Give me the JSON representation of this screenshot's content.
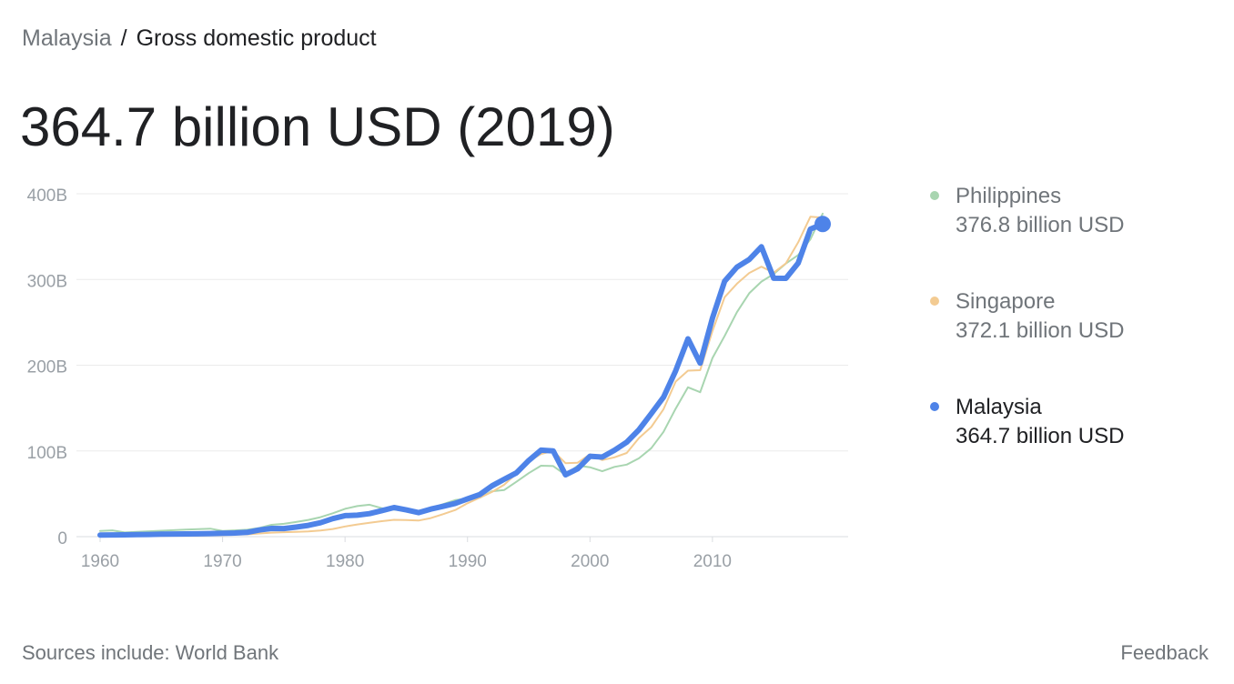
{
  "breadcrumb": {
    "country": "Malaysia",
    "separator": "/",
    "indicator": "Gross domestic product"
  },
  "headline": "364.7 billion USD (2019)",
  "legend": [
    {
      "name": "Philippines",
      "value": "376.8 billion USD",
      "color": "#a8d5b0",
      "active": false
    },
    {
      "name": "Singapore",
      "value": "372.1 billion USD",
      "color": "#f3cb92",
      "active": false
    },
    {
      "name": "Malaysia",
      "value": "364.7 billion USD",
      "color": "#4e83e8",
      "active": true
    }
  ],
  "footer": {
    "source": "Sources include: World Bank",
    "feedback": "Feedback"
  },
  "chart_data": {
    "type": "line",
    "x": [
      1960,
      1961,
      1962,
      1963,
      1964,
      1965,
      1966,
      1967,
      1968,
      1969,
      1970,
      1971,
      1972,
      1973,
      1974,
      1975,
      1976,
      1977,
      1978,
      1979,
      1980,
      1981,
      1982,
      1983,
      1984,
      1985,
      1986,
      1987,
      1988,
      1989,
      1990,
      1991,
      1992,
      1993,
      1994,
      1995,
      1996,
      1997,
      1998,
      1999,
      2000,
      2001,
      2002,
      2003,
      2004,
      2005,
      2006,
      2007,
      2008,
      2009,
      2010,
      2011,
      2012,
      2013,
      2014,
      2015,
      2016,
      2017,
      2018,
      2019
    ],
    "xticks": [
      "1960",
      "1970",
      "1980",
      "1990",
      "2000",
      "2010"
    ],
    "yticks": [
      "0",
      "100B",
      "200B",
      "300B",
      "400B"
    ],
    "ylim": [
      0,
      400
    ],
    "grid": true,
    "legend_position": "right",
    "series": [
      {
        "name": "Philippines",
        "color": "#a8d5b0",
        "width": 2,
        "values": [
          6.7,
          7.3,
          4.9,
          5.5,
          6.3,
          6.9,
          7.5,
          8.2,
          8.7,
          9.3,
          6.7,
          7.3,
          8.1,
          10.1,
          13.8,
          15.0,
          17.1,
          19.5,
          22.7,
          27.3,
          32.5,
          35.6,
          37.2,
          33.2,
          31.4,
          30.7,
          29.9,
          33.2,
          37.9,
          42.6,
          44.3,
          45.4,
          52.9,
          54.4,
          64.1,
          74.1,
          82.8,
          82.3,
          72.2,
          82.9,
          81.0,
          76.3,
          81.4,
          84.0,
          91.4,
          103.1,
          122.2,
          149.4,
          174.2,
          168.5,
          208.4,
          234.2,
          261.9,
          283.9,
          297.5,
          306.4,
          318.6,
          328.5,
          346.8,
          376.8
        ]
      },
      {
        "name": "Singapore",
        "color": "#f3cb92",
        "width": 2,
        "values": [
          0.7,
          0.8,
          0.9,
          0.9,
          0.9,
          1.0,
          1.1,
          1.2,
          1.4,
          1.6,
          1.9,
          2.3,
          2.7,
          3.7,
          4.7,
          5.2,
          5.6,
          6.0,
          7.2,
          8.9,
          11.9,
          14.2,
          16.1,
          18.0,
          19.6,
          19.4,
          18.8,
          21.6,
          26.2,
          31.1,
          38.9,
          45.5,
          52.1,
          60.6,
          73.7,
          87.9,
          96.3,
          100.1,
          85.7,
          86.3,
          96.1,
          89.3,
          92.5,
          97.6,
          115.0,
          127.8,
          148.6,
          180.9,
          193.6,
          194.2,
          239.8,
          279.4,
          295.1,
          307.6,
          314.9,
          307.9,
          318.8,
          343.3,
          373.2,
          372.1
        ]
      },
      {
        "name": "Malaysia",
        "color": "#4e83e8",
        "width": 6,
        "values": [
          1.9,
          2.0,
          2.1,
          2.3,
          2.5,
          2.9,
          3.1,
          3.2,
          3.3,
          3.6,
          3.9,
          4.2,
          5.0,
          7.7,
          9.5,
          9.4,
          11.1,
          13.2,
          16.2,
          21.0,
          24.5,
          25.0,
          26.8,
          30.3,
          33.9,
          31.2,
          28.0,
          32.2,
          35.3,
          38.8,
          44.0,
          49.1,
          59.2,
          66.9,
          74.5,
          88.8,
          100.9,
          100.0,
          72.2,
          79.1,
          93.8,
          92.8,
          100.8,
          110.2,
          124.7,
          143.5,
          162.7,
          193.5,
          230.8,
          202.3,
          255.0,
          298.0,
          314.4,
          323.3,
          338.1,
          301.4,
          301.3,
          319.1,
          358.7,
          364.7
        ]
      }
    ]
  }
}
